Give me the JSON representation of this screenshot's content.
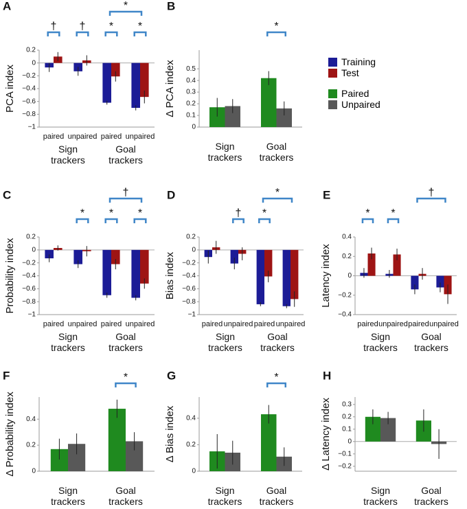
{
  "chart_data": [
    {
      "type": "bar",
      "panel": "A",
      "ylabel": "PCA index",
      "categories": [
        "paired",
        "unpaired",
        "paired",
        "unpaired"
      ],
      "groups": [
        "Sign trackers",
        "Goal trackers"
      ],
      "series": [
        {
          "name": "Training",
          "color": "#1c1c96",
          "values": [
            -0.07,
            -0.13,
            -0.62,
            -0.7
          ],
          "errors": [
            0.07,
            0.07,
            0.03,
            0.04
          ]
        },
        {
          "name": "Test",
          "color": "#9e1414",
          "values": [
            0.1,
            0.04,
            -0.21,
            -0.53
          ],
          "errors": [
            0.07,
            0.08,
            0.08,
            0.1
          ]
        }
      ],
      "ylim": [
        -1,
        0.2
      ],
      "yticks": [
        0.2,
        0,
        {
          "value": -0.2,
          "label": "−0.2"
        },
        {
          "value": -0.4,
          "label": "−0.4"
        },
        {
          "value": -0.6,
          "label": "−0.6"
        },
        {
          "value": -0.8,
          "label": "−0.8"
        },
        {
          "value": -1,
          "label": "−1"
        }
      ],
      "annotations": [
        "†",
        "†",
        "*",
        "*",
        "*"
      ]
    },
    {
      "type": "bar",
      "panel": "B",
      "ylabel": "Δ PCA index",
      "categories": [
        "Sign trackers",
        "Goal trackers"
      ],
      "series": [
        {
          "name": "Paired",
          "color": "#1f8a1f",
          "values": [
            0.17,
            0.42
          ],
          "errors": [
            0.08,
            0.06
          ]
        },
        {
          "name": "Unpaired",
          "color": "#585858",
          "values": [
            0.18,
            0.16
          ],
          "errors": [
            0.06,
            0.06
          ]
        }
      ],
      "ylim": [
        0,
        0.66
      ],
      "yticks": [
        0,
        0.1,
        0.2,
        0.3,
        0.4,
        0.5
      ],
      "annotations": [
        "*"
      ]
    },
    {
      "type": "bar",
      "panel": "C",
      "ylabel": "Probability index",
      "categories": [
        "paired",
        "unpaired",
        "paired",
        "unpaired"
      ],
      "groups": [
        "Sign trackers",
        "Goal trackers"
      ],
      "series": [
        {
          "color": "#1c1c96",
          "values": [
            -0.13,
            -0.22,
            -0.7,
            -0.74
          ],
          "errors": [
            0.06,
            0.06,
            0.04,
            0.04
          ]
        },
        {
          "color": "#9e1414",
          "values": [
            0.03,
            -0.02,
            -0.22,
            -0.52
          ],
          "errors": [
            0.04,
            0.08,
            0.08,
            0.08
          ]
        }
      ],
      "ylim": [
        -1,
        0.2
      ],
      "yticks": [
        0.2,
        0,
        {
          "value": -0.2,
          "label": "−0.2"
        },
        {
          "value": -0.4,
          "label": "−0.4"
        },
        {
          "value": -0.6,
          "label": "−0.6"
        },
        {
          "value": -0.8,
          "label": "−0.8"
        },
        {
          "value": -1,
          "label": "−1"
        }
      ],
      "annotations": [
        "*",
        "*",
        "*",
        "†"
      ]
    },
    {
      "type": "bar",
      "panel": "D",
      "ylabel": "Bias index",
      "categories": [
        "paired",
        "unpaired",
        "paired",
        "unpaired"
      ],
      "groups": [
        "Sign trackers",
        "Goal trackers"
      ],
      "series": [
        {
          "color": "#1c1c96",
          "values": [
            -0.11,
            -0.21,
            -0.84,
            -0.87
          ],
          "errors": [
            0.1,
            0.09,
            0.03,
            0.03
          ]
        },
        {
          "color": "#9e1414",
          "values": [
            0.04,
            -0.06,
            -0.41,
            -0.76
          ],
          "errors": [
            0.1,
            0.1,
            0.09,
            0.12
          ]
        }
      ],
      "ylim": [
        -1,
        0.2
      ],
      "yticks": [
        0.2,
        0,
        {
          "value": -0.2,
          "label": "−0.2"
        },
        {
          "value": -0.4,
          "label": "−0.4"
        },
        {
          "value": -0.6,
          "label": "−0.6"
        },
        {
          "value": -0.8,
          "label": "−0.8"
        },
        {
          "value": -1,
          "label": "−1"
        }
      ],
      "annotations": [
        "†",
        "*",
        "*"
      ]
    },
    {
      "type": "bar",
      "panel": "E",
      "ylabel": "Latency index",
      "categories": [
        "paired",
        "unpaired",
        "paired",
        "unpaired"
      ],
      "groups": [
        "Sign trackers",
        "Goal trackers"
      ],
      "series": [
        {
          "color": "#1c1c96",
          "values": [
            0.03,
            0.02,
            -0.14,
            -0.12
          ],
          "errors": [
            0.05,
            0.04,
            0.05,
            0.05
          ]
        },
        {
          "color": "#9e1414",
          "values": [
            0.23,
            0.22,
            0.02,
            -0.19
          ],
          "errors": [
            0.06,
            0.06,
            0.06,
            0.1
          ]
        }
      ],
      "ylim": [
        -0.4,
        0.4
      ],
      "yticks": [
        0.4,
        0.2,
        0,
        {
          "value": -0.2,
          "label": "−0.2"
        },
        {
          "value": -0.4,
          "label": "−0.4"
        }
      ],
      "annotations": [
        "*",
        "*",
        "†"
      ]
    },
    {
      "type": "bar",
      "panel": "F",
      "ylabel": "Δ Probability index",
      "categories": [
        "Sign trackers",
        "Goal trackers"
      ],
      "series": [
        {
          "color": "#1f8a1f",
          "values": [
            0.17,
            0.48
          ],
          "errors": [
            0.08,
            0.07
          ]
        },
        {
          "color": "#585858",
          "values": [
            0.21,
            0.23
          ],
          "errors": [
            0.08,
            0.07
          ]
        }
      ],
      "ylim": [
        0,
        0.57
      ],
      "yticks": [
        0,
        0.2,
        0.4
      ],
      "annotations": [
        "*"
      ]
    },
    {
      "type": "bar",
      "panel": "G",
      "ylabel": "Δ Bias index",
      "categories": [
        "Sign trackers",
        "Goal trackers"
      ],
      "series": [
        {
          "color": "#1f8a1f",
          "values": [
            0.15,
            0.43
          ],
          "errors": [
            0.13,
            0.07
          ]
        },
        {
          "color": "#585858",
          "values": [
            0.14,
            0.11
          ],
          "errors": [
            0.09,
            0.07
          ]
        }
      ],
      "ylim": [
        0,
        0.56
      ],
      "yticks": [
        0,
        0.2,
        0.4
      ],
      "annotations": [
        "*"
      ]
    },
    {
      "type": "bar",
      "panel": "H",
      "ylabel": "Δ Latency index",
      "categories": [
        "Sign trackers",
        "Goal trackers"
      ],
      "series": [
        {
          "color": "#1f8a1f",
          "values": [
            0.2,
            0.17
          ],
          "errors": [
            0.06,
            0.09
          ]
        },
        {
          "color": "#585858",
          "values": [
            0.19,
            -0.02
          ],
          "errors": [
            0.05,
            0.12
          ]
        }
      ],
      "ylim": [
        -0.24,
        0.36
      ],
      "yticks": [
        0.3,
        0.2,
        0.1,
        0,
        {
          "value": -0.1,
          "label": "−0.1"
        },
        {
          "value": -0.2,
          "label": "−0.2"
        }
      ],
      "annotations": []
    }
  ]
}
